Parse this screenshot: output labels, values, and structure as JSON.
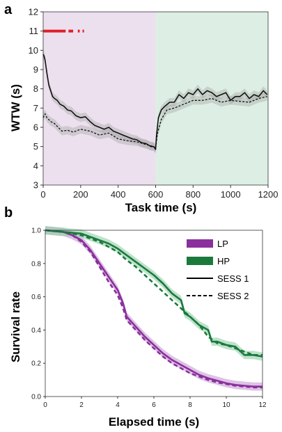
{
  "panels": {
    "a": "a",
    "b": "b"
  },
  "colors": {
    "lp": "#8b2f9d",
    "lp_band": "#c79bd3",
    "hp": "#1a7a3c",
    "hp_band": "#93cfa8",
    "phase1_bg": "#ece0ef",
    "phase2_bg": "#ddefe4",
    "marker": "#e0202a",
    "black": "#111111"
  },
  "chart_data": [
    {
      "type": "line",
      "panel": "a",
      "xlabel": "Task time (s)",
      "ylabel": "WTW (s)",
      "xlim": [
        0,
        1200
      ],
      "ylim": [
        3,
        12
      ],
      "xticks": [
        0,
        200,
        400,
        600,
        800,
        1000,
        1200
      ],
      "yticks": [
        3,
        4,
        5,
        6,
        7,
        8,
        9,
        10,
        11,
        12
      ],
      "shaded_regions": [
        {
          "x": [
            0,
            600
          ],
          "color_key": "phase1_bg"
        },
        {
          "x": [
            600,
            1200
          ],
          "color_key": "phase2_bg"
        }
      ],
      "marker_strip": {
        "y": 11,
        "segments": [
          [
            0,
            120
          ],
          [
            135,
            160
          ],
          [
            185,
            195
          ],
          [
            210,
            218
          ]
        ]
      },
      "series": [
        {
          "style": "solid",
          "x": [
            0,
            5,
            10,
            20,
            30,
            40,
            50,
            60,
            75,
            90,
            110,
            130,
            150,
            175,
            200,
            225,
            250,
            275,
            300,
            325,
            350,
            375,
            400,
            425,
            450,
            475,
            500,
            525,
            550,
            575,
            590,
            600,
            605,
            615,
            630,
            650,
            675,
            700,
            725,
            750,
            775,
            800,
            825,
            850,
            875,
            900,
            925,
            950,
            975,
            1000,
            1025,
            1050,
            1075,
            1100,
            1125,
            1150,
            1175,
            1195
          ],
          "y": [
            9.8,
            9.7,
            9.5,
            8.8,
            8.2,
            7.9,
            7.6,
            7.5,
            7.4,
            7.2,
            7.1,
            6.9,
            6.85,
            6.6,
            6.5,
            6.55,
            6.3,
            6.1,
            6.0,
            5.9,
            6.0,
            5.8,
            5.7,
            5.6,
            5.5,
            5.4,
            5.35,
            5.2,
            5.15,
            5.0,
            5.0,
            4.85,
            5.6,
            6.5,
            6.9,
            7.1,
            7.3,
            7.3,
            7.7,
            7.5,
            7.8,
            7.7,
            8.0,
            7.7,
            7.9,
            7.8,
            7.6,
            7.7,
            7.8,
            7.4,
            7.6,
            7.6,
            7.8,
            7.5,
            7.7,
            7.6,
            7.9,
            7.7
          ]
        },
        {
          "style": "dashed",
          "x": [
            0,
            10,
            20,
            40,
            60,
            80,
            100,
            130,
            160,
            200,
            250,
            300,
            350,
            400,
            450,
            500,
            550,
            590,
            600,
            610,
            630,
            660,
            700,
            750,
            800,
            850,
            900,
            950,
            1000,
            1050,
            1100,
            1150,
            1195
          ],
          "y": [
            6.5,
            6.7,
            6.5,
            6.3,
            6.2,
            6.0,
            5.8,
            5.85,
            5.75,
            5.9,
            5.8,
            5.6,
            5.7,
            5.4,
            5.3,
            5.25,
            5.1,
            5.0,
            4.9,
            5.7,
            6.4,
            6.9,
            7.0,
            7.2,
            7.4,
            7.4,
            7.5,
            7.3,
            7.4,
            7.35,
            7.3,
            7.5,
            7.6
          ]
        }
      ]
    },
    {
      "type": "line",
      "panel": "b",
      "xlabel": "Elapsed time (s)",
      "ylabel": "Survival rate",
      "xlim": [
        0,
        12
      ],
      "ylim": [
        0,
        1
      ],
      "xticks": [
        0,
        2,
        4,
        6,
        8,
        10,
        12
      ],
      "yticks": [
        0.0,
        0.2,
        0.4,
        0.6,
        0.8,
        1.0
      ],
      "ytick_labels": [
        "0.0",
        "0.2",
        "0.4",
        "0.6",
        "0.8",
        "1.0"
      ],
      "legend": {
        "placement": "top-right",
        "entries": [
          {
            "label": "LP",
            "kind": "band",
            "color_key": "lp"
          },
          {
            "label": "HP",
            "kind": "band",
            "color_key": "hp"
          },
          {
            "label": "SESS 1",
            "kind": "line",
            "style": "solid"
          },
          {
            "label": "SESS 2",
            "kind": "line",
            "style": "dashed"
          }
        ]
      },
      "series": [
        {
          "condition": "LP",
          "session": "SESS 1",
          "style": "solid",
          "x": [
            0,
            1,
            1.5,
            2,
            2.5,
            3,
            3.5,
            4,
            4.3,
            4.5,
            5,
            5.5,
            6,
            6.5,
            7,
            7.5,
            8,
            8.5,
            9,
            9.5,
            10,
            10.5,
            11,
            11.5,
            12
          ],
          "y": [
            1.0,
            0.99,
            0.97,
            0.94,
            0.88,
            0.8,
            0.72,
            0.64,
            0.56,
            0.48,
            0.42,
            0.36,
            0.31,
            0.26,
            0.22,
            0.19,
            0.16,
            0.13,
            0.11,
            0.095,
            0.08,
            0.07,
            0.065,
            0.06,
            0.06
          ]
        },
        {
          "condition": "LP",
          "session": "SESS 2",
          "style": "dashed",
          "x": [
            0,
            1,
            1.5,
            2,
            2.5,
            3,
            3.5,
            4,
            4.3,
            4.5,
            5,
            5.5,
            6,
            6.5,
            7,
            7.5,
            8,
            8.5,
            9,
            9.5,
            10,
            10.5,
            11,
            11.5,
            12
          ],
          "y": [
            1.0,
            0.99,
            0.97,
            0.93,
            0.87,
            0.78,
            0.69,
            0.61,
            0.53,
            0.46,
            0.4,
            0.34,
            0.29,
            0.24,
            0.2,
            0.17,
            0.14,
            0.12,
            0.1,
            0.085,
            0.075,
            0.065,
            0.06,
            0.055,
            0.055
          ]
        },
        {
          "condition": "HP",
          "session": "SESS 1",
          "style": "solid",
          "x": [
            0,
            1,
            2,
            2.5,
            3,
            3.5,
            4,
            4.5,
            5,
            5.5,
            6,
            6.5,
            7,
            7.5,
            7.7,
            8,
            8.5,
            9,
            9.2,
            9.5,
            10,
            10.5,
            11,
            11.5,
            12
          ],
          "y": [
            1.0,
            0.99,
            0.98,
            0.96,
            0.94,
            0.92,
            0.89,
            0.85,
            0.81,
            0.77,
            0.73,
            0.68,
            0.62,
            0.58,
            0.5,
            0.48,
            0.43,
            0.4,
            0.33,
            0.33,
            0.31,
            0.3,
            0.25,
            0.25,
            0.24
          ]
        },
        {
          "condition": "HP",
          "session": "SESS 2",
          "style": "dashed",
          "x": [
            0,
            1,
            2,
            2.5,
            3,
            3.5,
            4,
            4.5,
            5,
            5.5,
            6,
            6.5,
            7,
            7.5,
            8,
            8.5,
            9,
            9.5,
            10,
            10.5,
            11,
            11.5,
            12
          ],
          "y": [
            1.0,
            0.99,
            0.97,
            0.95,
            0.93,
            0.9,
            0.87,
            0.82,
            0.78,
            0.73,
            0.68,
            0.63,
            0.58,
            0.53,
            0.48,
            0.43,
            0.36,
            0.32,
            0.31,
            0.29,
            0.27,
            0.25,
            0.25
          ]
        }
      ]
    }
  ]
}
